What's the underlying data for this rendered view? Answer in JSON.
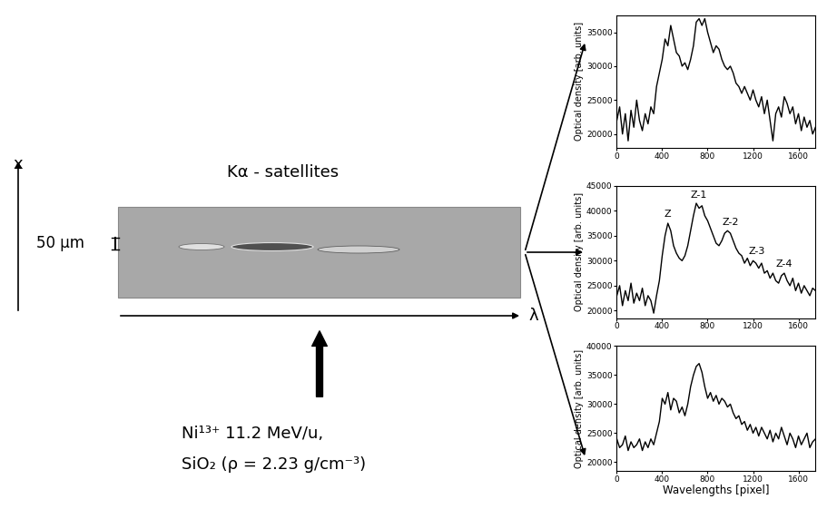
{
  "diagram": {
    "image_title": "Kα - satellites",
    "axis_x": "x",
    "axis_lambda": "λ",
    "scale_bar": "50 μm",
    "beam": [
      "Ni¹³⁺ 11.2 MeV/u,",
      "SiO₂ (ρ = 2.23 g/cm⁻³)"
    ]
  },
  "chart_data": [
    {
      "type": "line",
      "color": "#000000",
      "ylabel": "Optical density [arb. units]",
      "xlim": [
        0,
        1750
      ],
      "xticks": [
        0,
        400,
        800,
        1200,
        1600
      ],
      "ylim": [
        18000,
        37500
      ],
      "yticks": [
        20000,
        25000,
        30000,
        35000
      ],
      "x": [
        0,
        25,
        50,
        75,
        100,
        125,
        150,
        175,
        200,
        225,
        250,
        275,
        300,
        325,
        350,
        375,
        400,
        425,
        450,
        475,
        500,
        525,
        550,
        575,
        600,
        625,
        650,
        675,
        700,
        725,
        750,
        775,
        800,
        825,
        850,
        875,
        900,
        925,
        950,
        975,
        1000,
        1025,
        1050,
        1075,
        1100,
        1125,
        1150,
        1175,
        1200,
        1225,
        1250,
        1275,
        1300,
        1325,
        1350,
        1375,
        1400,
        1425,
        1450,
        1475,
        1500,
        1525,
        1550,
        1575,
        1600,
        1625,
        1650,
        1675,
        1700,
        1725,
        1750
      ],
      "values": [
        22000,
        24000,
        20000,
        23000,
        19000,
        23500,
        21000,
        25000,
        22000,
        20500,
        23000,
        21500,
        24000,
        23000,
        27000,
        29000,
        31000,
        34000,
        33000,
        36000,
        34000,
        32000,
        31500,
        30000,
        30500,
        29500,
        31000,
        33000,
        36500,
        37000,
        36000,
        37000,
        35000,
        33500,
        32000,
        33000,
        32500,
        31000,
        30000,
        29500,
        30000,
        29000,
        27500,
        27000,
        26000,
        27000,
        26000,
        25000,
        26500,
        25000,
        24000,
        25500,
        23000,
        25000,
        22000,
        19000,
        23000,
        24000,
        22500,
        25500,
        24500,
        23000,
        24000,
        21500,
        23000,
        20500,
        22500,
        21000,
        22000,
        20000,
        21000
      ]
    },
    {
      "type": "line",
      "color": "#000000",
      "ylabel": "Optical density [arb. units]",
      "xlim": [
        0,
        1750
      ],
      "xticks": [
        0,
        400,
        800,
        1200,
        1600
      ],
      "ylim": [
        18500,
        45000
      ],
      "yticks": [
        20000,
        25000,
        30000,
        35000,
        40000,
        45000
      ],
      "x": [
        0,
        25,
        50,
        75,
        100,
        125,
        150,
        175,
        200,
        225,
        250,
        275,
        300,
        325,
        350,
        375,
        400,
        425,
        450,
        475,
        500,
        525,
        550,
        575,
        600,
        625,
        650,
        675,
        700,
        725,
        750,
        775,
        800,
        825,
        850,
        875,
        900,
        925,
        950,
        975,
        1000,
        1025,
        1050,
        1075,
        1100,
        1125,
        1150,
        1175,
        1200,
        1225,
        1250,
        1275,
        1300,
        1325,
        1350,
        1375,
        1400,
        1425,
        1450,
        1475,
        1500,
        1525,
        1550,
        1575,
        1600,
        1625,
        1650,
        1675,
        1700,
        1725,
        1750
      ],
      "values": [
        23000,
        25000,
        21000,
        24000,
        22000,
        25500,
        21500,
        23500,
        22000,
        24500,
        21000,
        23000,
        22000,
        19500,
        23000,
        26000,
        31000,
        35000,
        37500,
        36000,
        33000,
        31500,
        30500,
        30000,
        31000,
        33000,
        36000,
        39000,
        41500,
        40500,
        41000,
        39000,
        38000,
        36500,
        35000,
        33500,
        33000,
        34000,
        35500,
        36000,
        35500,
        34000,
        32500,
        31500,
        31000,
        29500,
        30500,
        29000,
        30000,
        29500,
        28500,
        29500,
        27500,
        28000,
        26500,
        27500,
        26000,
        25500,
        27000,
        27500,
        26000,
        25000,
        26500,
        24000,
        25500,
        23500,
        25000,
        24000,
        23000,
        24500,
        24000
      ],
      "annotations": [
        {
          "text": "Z",
          "x": 450,
          "y": 38500
        },
        {
          "text": "Z-1",
          "x": 720,
          "y": 42300
        },
        {
          "text": "Z-2",
          "x": 1000,
          "y": 36800
        },
        {
          "text": "Z-3",
          "x": 1230,
          "y": 31000
        },
        {
          "text": "Z-4",
          "x": 1470,
          "y": 28500
        }
      ]
    },
    {
      "type": "line",
      "color": "#000000",
      "ylabel": "Optical density [arb. units]",
      "xlabel": "Wavelengths [pixel]",
      "xlim": [
        0,
        1750
      ],
      "xticks": [
        0,
        400,
        800,
        1200,
        1600
      ],
      "ylim": [
        18500,
        40000
      ],
      "yticks": [
        20000,
        25000,
        30000,
        35000,
        40000
      ],
      "x": [
        0,
        25,
        50,
        75,
        100,
        125,
        150,
        175,
        200,
        225,
        250,
        275,
        300,
        325,
        350,
        375,
        400,
        425,
        450,
        475,
        500,
        525,
        550,
        575,
        600,
        625,
        650,
        675,
        700,
        725,
        750,
        775,
        800,
        825,
        850,
        875,
        900,
        925,
        950,
        975,
        1000,
        1025,
        1050,
        1075,
        1100,
        1125,
        1150,
        1175,
        1200,
        1225,
        1250,
        1275,
        1300,
        1325,
        1350,
        1375,
        1400,
        1425,
        1450,
        1475,
        1500,
        1525,
        1550,
        1575,
        1600,
        1625,
        1650,
        1675,
        1700,
        1725,
        1750
      ],
      "values": [
        24000,
        22500,
        23000,
        24500,
        22000,
        23500,
        22500,
        23000,
        24000,
        22000,
        23500,
        22500,
        24000,
        23000,
        25000,
        27000,
        31000,
        30000,
        32000,
        29000,
        31000,
        30500,
        28500,
        29500,
        28000,
        30000,
        33000,
        35000,
        36500,
        37000,
        35500,
        33000,
        31000,
        32000,
        30500,
        31500,
        30000,
        31000,
        30500,
        29500,
        30000,
        28500,
        27500,
        28000,
        26500,
        27000,
        25500,
        26500,
        25000,
        26000,
        24500,
        26000,
        25000,
        24000,
        25500,
        23500,
        25000,
        24000,
        26000,
        24500,
        23000,
        25000,
        24000,
        22500,
        24500,
        23000,
        24000,
        25000,
        22500,
        23500,
        24000
      ]
    }
  ]
}
